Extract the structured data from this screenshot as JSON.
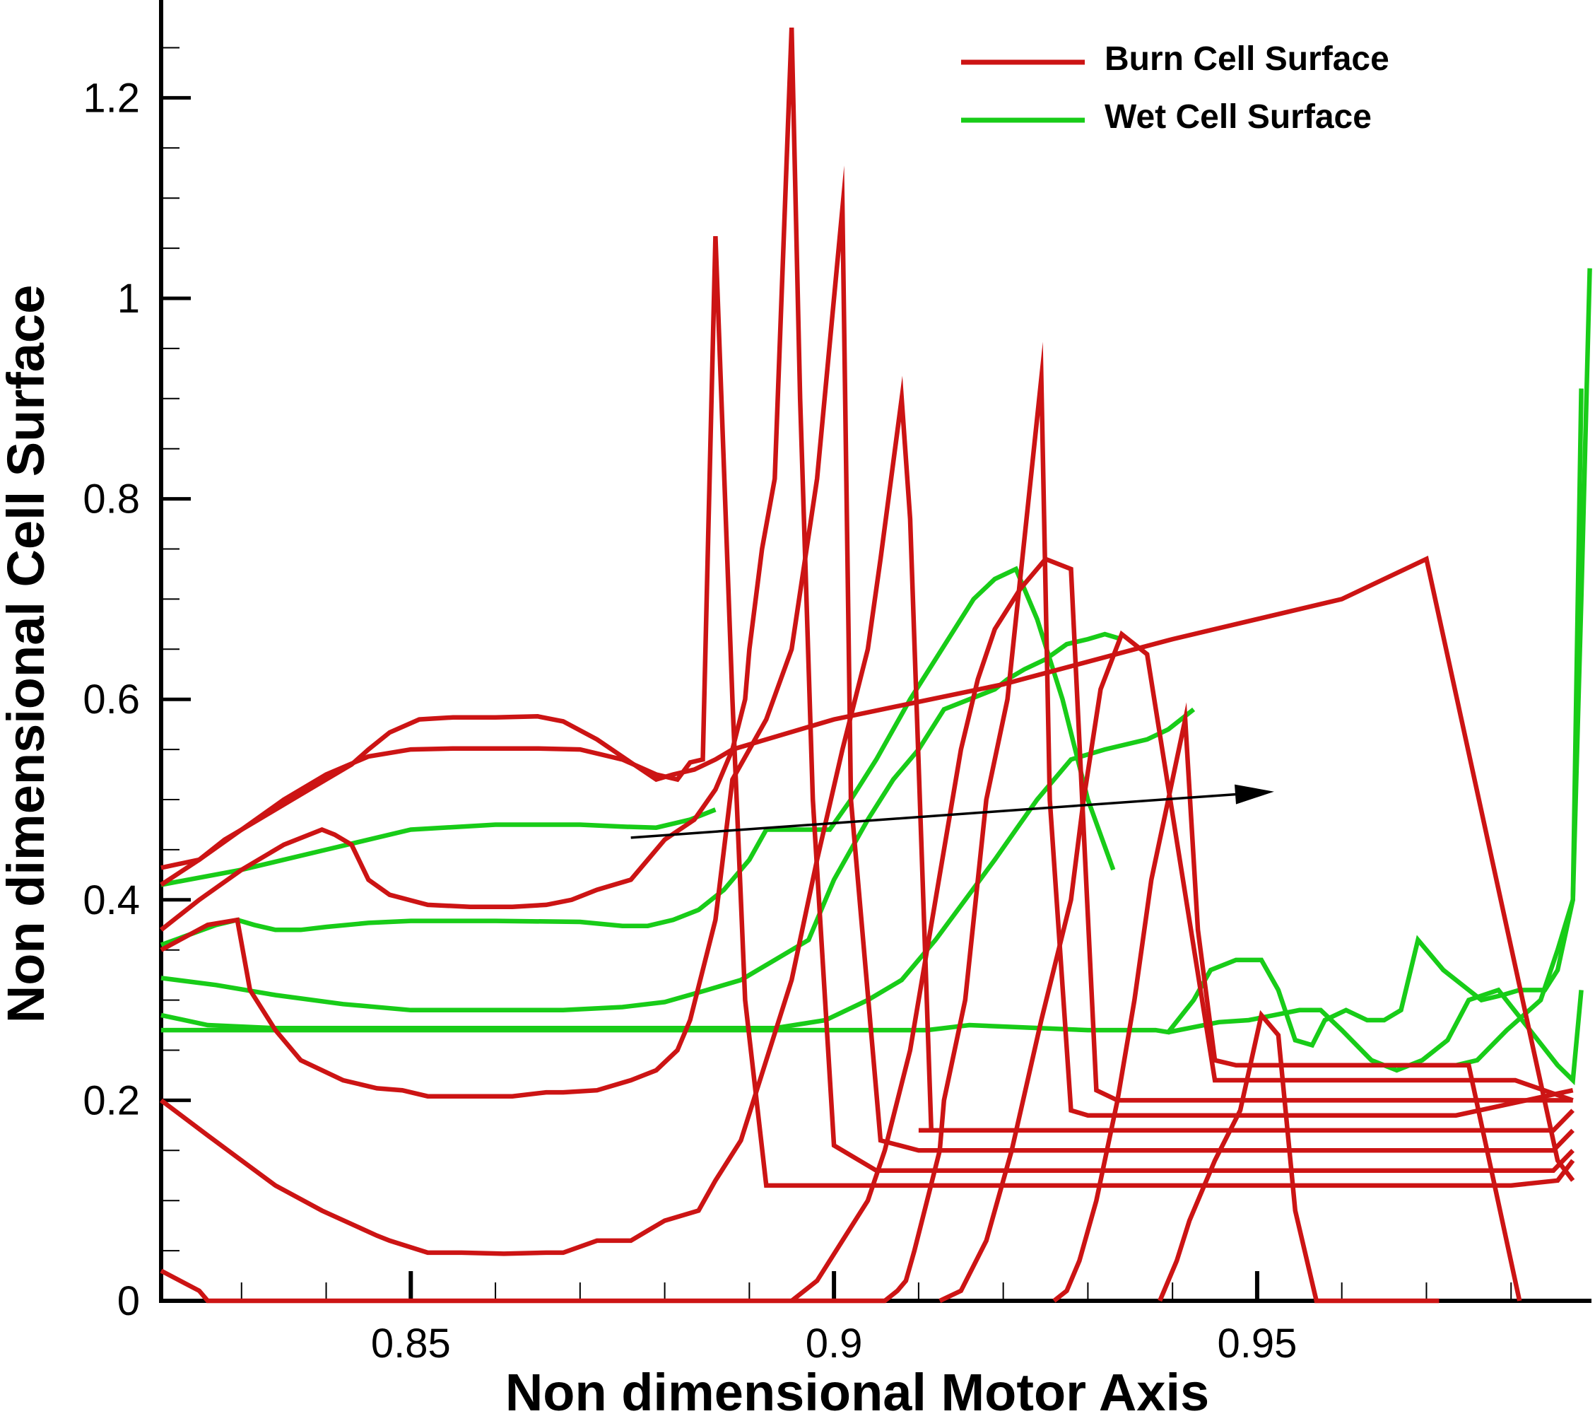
{
  "chart_data": {
    "type": "line",
    "xlabel": "Non dimensional Motor Axis",
    "ylabel": "Non dimensional Cell Surface",
    "xlim": [
      0.8205,
      0.9895
    ],
    "ylim": [
      0,
      1.28
    ],
    "x_ticks": [
      {
        "value": 0.85,
        "label": "0.85"
      },
      {
        "value": 0.9,
        "label": "0.9"
      },
      {
        "value": 0.95,
        "label": "0.95"
      }
    ],
    "y_ticks": [
      {
        "value": 0,
        "label": "0"
      },
      {
        "value": 0.2,
        "label": "0.2"
      },
      {
        "value": 0.4,
        "label": "0.4"
      },
      {
        "value": 0.6,
        "label": "0.6"
      },
      {
        "value": 0.8,
        "label": "0.8"
      },
      {
        "value": 1.0,
        "label": "1"
      },
      {
        "value": 1.2,
        "label": "1.2"
      }
    ],
    "grid": false,
    "legend_position": "top-right",
    "colors": {
      "burn": "#cc1414",
      "wet": "#18cc18",
      "arrow": "#000000"
    },
    "legend": [
      {
        "label": "Burn Cell Surface",
        "color": "#cc1414"
      },
      {
        "label": "Wet Cell Surface",
        "color": "#18cc18"
      }
    ],
    "arrow": {
      "from": [
        0.876,
        0.462
      ],
      "to": [
        0.952,
        0.508
      ]
    },
    "burn_series": [
      {
        "x": [
          0.8205,
          0.825,
          0.828,
          0.832,
          0.836,
          0.84,
          0.843,
          0.845,
          0.8475,
          0.851,
          0.855,
          0.86,
          0.865,
          0.868,
          0.872,
          0.876,
          0.879,
          0.881,
          0.8835,
          0.886,
          0.888,
          0.9,
          0.92,
          0.94,
          0.96,
          0.97,
          0.9855,
          0.9873
        ],
        "y": [
          0.432,
          0.44,
          0.46,
          0.48,
          0.5,
          0.52,
          0.535,
          0.55,
          0.567,
          0.58,
          0.582,
          0.582,
          0.583,
          0.578,
          0.56,
          0.537,
          0.52,
          0.525,
          0.53,
          0.54,
          0.55,
          0.58,
          0.615,
          0.66,
          0.7,
          0.74,
          0.14,
          0.12
        ]
      },
      {
        "x": [
          0.8205,
          0.825,
          0.83,
          0.835,
          0.84,
          0.845,
          0.85,
          0.855,
          0.86,
          0.865,
          0.87,
          0.875,
          0.879,
          0.8815,
          0.883,
          0.8845,
          0.886,
          0.888,
          0.8895,
          0.892,
          0.893,
          0.8935,
          0.8945,
          0.8955,
          0.897,
          0.9,
          0.92,
          0.94,
          0.96,
          0.98,
          0.9855,
          0.9873
        ],
        "y": [
          0.415,
          0.44,
          0.47,
          0.5,
          0.525,
          0.543,
          0.55,
          0.551,
          0.551,
          0.551,
          0.55,
          0.54,
          0.525,
          0.52,
          0.537,
          0.54,
          1.062,
          0.6,
          0.3,
          0.115,
          0.115,
          0.115,
          0.115,
          0.115,
          0.115,
          0.115,
          0.115,
          0.115,
          0.115,
          0.115,
          0.12,
          0.14
        ]
      },
      {
        "x": [
          0.8205,
          0.825,
          0.83,
          0.835,
          0.8395,
          0.841,
          0.843,
          0.845,
          0.8475,
          0.852,
          0.857,
          0.862,
          0.866,
          0.869,
          0.872,
          0.876,
          0.878,
          0.88,
          0.8835,
          0.886,
          0.888,
          0.8895,
          0.89,
          0.8915,
          0.893,
          0.895,
          0.896,
          0.8975,
          0.9,
          0.905,
          0.91,
          0.93,
          0.95,
          0.97,
          0.985,
          0.9873
        ],
        "y": [
          0.37,
          0.4,
          0.43,
          0.455,
          0.47,
          0.465,
          0.455,
          0.42,
          0.405,
          0.395,
          0.393,
          0.393,
          0.395,
          0.4,
          0.41,
          0.42,
          0.44,
          0.46,
          0.48,
          0.51,
          0.55,
          0.6,
          0.65,
          0.75,
          0.82,
          1.27,
          0.9,
          0.5,
          0.155,
          0.13,
          0.13,
          0.13,
          0.13,
          0.13,
          0.13,
          0.15
        ]
      },
      {
        "x": [
          0.8205,
          0.826,
          0.8295,
          0.831,
          0.834,
          0.837,
          0.842,
          0.846,
          0.849,
          0.852,
          0.854,
          0.858,
          0.862,
          0.866,
          0.868,
          0.872,
          0.876,
          0.879,
          0.8815,
          0.883,
          0.886,
          0.888,
          0.89,
          0.892,
          0.895,
          0.898,
          0.901,
          0.902,
          0.9055,
          0.91,
          0.93,
          0.95,
          0.97,
          0.985,
          0.9873
        ],
        "y": [
          0.35,
          0.375,
          0.38,
          0.31,
          0.27,
          0.24,
          0.22,
          0.212,
          0.21,
          0.204,
          0.204,
          0.204,
          0.204,
          0.208,
          0.208,
          0.21,
          0.22,
          0.23,
          0.25,
          0.28,
          0.38,
          0.52,
          0.55,
          0.58,
          0.65,
          0.82,
          1.09,
          0.5,
          0.16,
          0.15,
          0.15,
          0.15,
          0.15,
          0.15,
          0.17
        ]
      },
      {
        "x": [
          0.8205,
          0.826,
          0.83,
          0.834,
          0.8395,
          0.846,
          0.8475,
          0.852,
          0.856,
          0.861,
          0.866,
          0.868,
          0.872,
          0.875,
          0.876,
          0.878,
          0.88,
          0.884,
          0.886,
          0.889,
          0.892,
          0.895,
          0.898,
          0.901,
          0.904,
          0.9055,
          0.908,
          0.909,
          0.9115,
          0.91,
          0.93,
          0.95,
          0.97,
          0.985,
          0.9873
        ],
        "y": [
          0.2,
          0.165,
          0.14,
          0.115,
          0.09,
          0.065,
          0.06,
          0.048,
          0.048,
          0.047,
          0.048,
          0.048,
          0.06,
          0.06,
          0.06,
          0.07,
          0.08,
          0.09,
          0.12,
          0.16,
          0.24,
          0.32,
          0.44,
          0.55,
          0.65,
          0.74,
          0.9,
          0.78,
          0.17,
          0.17,
          0.17,
          0.17,
          0.17,
          0.17,
          0.19
        ]
      },
      {
        "x": [
          0.8205,
          0.825,
          0.826,
          0.9,
          0.906,
          0.9075,
          0.9085,
          0.9095,
          0.911,
          0.9125,
          0.913,
          0.9155,
          0.918,
          0.9205,
          0.9225,
          0.9245,
          0.9255,
          0.928,
          0.93,
          0.9515,
          0.9735,
          0.9873
        ],
        "y": [
          0.03,
          0.01,
          0.0,
          0.0,
          0.0,
          0.01,
          0.02,
          0.05,
          0.1,
          0.15,
          0.2,
          0.3,
          0.5,
          0.6,
          0.76,
          0.92,
          0.5,
          0.19,
          0.185,
          0.185,
          0.185,
          0.21
        ]
      },
      {
        "x": [
          0.895,
          0.898,
          0.901,
          0.904,
          0.906,
          0.909,
          0.912,
          0.915,
          0.917,
          0.919,
          0.922,
          0.925,
          0.928,
          0.931,
          0.9335,
          0.935,
          0.9555,
          0.9675,
          0.9873
        ],
        "y": [
          0.0,
          0.02,
          0.06,
          0.1,
          0.15,
          0.25,
          0.4,
          0.55,
          0.62,
          0.67,
          0.71,
          0.74,
          0.73,
          0.21,
          0.2,
          0.2,
          0.2,
          0.2,
          0.2
        ]
      },
      {
        "x": [
          0.9125,
          0.915,
          0.918,
          0.921,
          0.9245,
          0.928,
          0.9295,
          0.9315,
          0.934,
          0.937,
          0.945,
          0.955,
          0.97,
          0.9805,
          0.9873
        ],
        "y": [
          0.0,
          0.01,
          0.06,
          0.15,
          0.28,
          0.4,
          0.5,
          0.61,
          0.665,
          0.645,
          0.22,
          0.22,
          0.22,
          0.22,
          0.2
        ]
      },
      {
        "x": [
          0.926,
          0.9275,
          0.929,
          0.931,
          0.9335,
          0.9355,
          0.9375,
          0.9395,
          0.9415,
          0.943,
          0.945,
          0.9475,
          0.96,
          0.975,
          0.981
        ],
        "y": [
          0.0,
          0.01,
          0.04,
          0.1,
          0.2,
          0.3,
          0.42,
          0.5,
          0.58,
          0.37,
          0.24,
          0.235,
          0.235,
          0.235,
          0.0
        ]
      },
      {
        "x": [
          0.9385,
          0.9405,
          0.942,
          0.945,
          0.948,
          0.9505,
          0.9525,
          0.9545,
          0.957,
          0.9715
        ],
        "y": [
          0.0,
          0.04,
          0.08,
          0.14,
          0.19,
          0.285,
          0.265,
          0.09,
          0.0,
          0.0
        ]
      }
    ],
    "wet_series": [
      {
        "x": [
          0.8205,
          0.83,
          0.84,
          0.85,
          0.86,
          0.87,
          0.875,
          0.879,
          0.883,
          0.886
        ],
        "y": [
          0.415,
          0.43,
          0.45,
          0.47,
          0.475,
          0.475,
          0.473,
          0.472,
          0.48,
          0.49
        ]
      },
      {
        "x": [
          0.8205,
          0.827,
          0.8295,
          0.8315,
          0.834,
          0.837,
          0.84,
          0.845,
          0.85,
          0.86,
          0.87,
          0.875,
          0.878,
          0.881,
          0.884,
          0.887,
          0.89,
          0.892,
          0.895,
          0.897,
          0.8995,
          0.902,
          0.905,
          0.909,
          0.9135,
          0.9165,
          0.919,
          0.9215,
          0.924,
          0.927,
          0.93,
          0.933
        ],
        "y": [
          0.355,
          0.375,
          0.38,
          0.375,
          0.37,
          0.37,
          0.373,
          0.377,
          0.379,
          0.379,
          0.378,
          0.374,
          0.374,
          0.38,
          0.39,
          0.41,
          0.44,
          0.47,
          0.47,
          0.47,
          0.47,
          0.5,
          0.54,
          0.6,
          0.66,
          0.7,
          0.72,
          0.73,
          0.68,
          0.6,
          0.5,
          0.43
        ]
      },
      {
        "x": [
          0.8205,
          0.827,
          0.834,
          0.842,
          0.85,
          0.86,
          0.868,
          0.875,
          0.88,
          0.885,
          0.889,
          0.893,
          0.897,
          0.9,
          0.904,
          0.907,
          0.91,
          0.913,
          0.916,
          0.919,
          0.9205,
          0.9225,
          0.925,
          0.9275,
          0.93,
          0.932,
          0.934
        ],
        "y": [
          0.322,
          0.315,
          0.305,
          0.296,
          0.29,
          0.29,
          0.29,
          0.293,
          0.298,
          0.31,
          0.32,
          0.34,
          0.36,
          0.42,
          0.48,
          0.52,
          0.55,
          0.59,
          0.6,
          0.61,
          0.62,
          0.63,
          0.64,
          0.655,
          0.66,
          0.665,
          0.66
        ]
      },
      {
        "x": [
          0.8205,
          0.826,
          0.834,
          0.845,
          0.855,
          0.865,
          0.875,
          0.885,
          0.893,
          0.899,
          0.904,
          0.908,
          0.912,
          0.9155,
          0.919,
          0.9215,
          0.924,
          0.928,
          0.932,
          0.937,
          0.9395,
          0.9425
        ],
        "y": [
          0.285,
          0.275,
          0.272,
          0.272,
          0.272,
          0.272,
          0.272,
          0.272,
          0.272,
          0.28,
          0.3,
          0.32,
          0.36,
          0.4,
          0.44,
          0.47,
          0.5,
          0.54,
          0.55,
          0.56,
          0.57,
          0.59
        ]
      },
      {
        "x": [
          0.8205,
          0.86,
          0.9,
          0.911,
          0.916,
          0.93,
          0.938,
          0.9395,
          0.9425,
          0.9445,
          0.9475,
          0.9505,
          0.9525,
          0.9545,
          0.9565,
          0.958,
          0.9605,
          0.963,
          0.965,
          0.967,
          0.969,
          0.972,
          0.9765,
          0.979,
          0.981,
          0.984,
          0.9855,
          0.9873,
          0.9883
        ],
        "y": [
          0.27,
          0.27,
          0.27,
          0.27,
          0.275,
          0.27,
          0.27,
          0.268,
          0.3,
          0.33,
          0.34,
          0.34,
          0.31,
          0.26,
          0.255,
          0.28,
          0.29,
          0.28,
          0.28,
          0.29,
          0.36,
          0.33,
          0.3,
          0.305,
          0.31,
          0.31,
          0.33,
          0.4,
          0.91
        ]
      },
      {
        "x": [
          0.9395,
          0.9425,
          0.9455,
          0.949,
          0.952,
          0.955,
          0.9575,
          0.96,
          0.9635,
          0.9665,
          0.9695,
          0.9725,
          0.975,
          0.9785,
          0.9855,
          0.9873,
          0.9883
        ],
        "y": [
          0.268,
          0.273,
          0.278,
          0.28,
          0.285,
          0.29,
          0.29,
          0.27,
          0.24,
          0.23,
          0.24,
          0.26,
          0.3,
          0.31,
          0.235,
          0.22,
          0.31
        ]
      },
      {
        "x": [
          0.9665,
          0.9735,
          0.976,
          0.9795,
          0.9835,
          0.9855,
          0.9873,
          0.9883,
          0.9893
        ],
        "y": [
          0.235,
          0.235,
          0.24,
          0.27,
          0.3,
          0.35,
          0.4,
          0.7,
          1.03
        ]
      }
    ]
  }
}
